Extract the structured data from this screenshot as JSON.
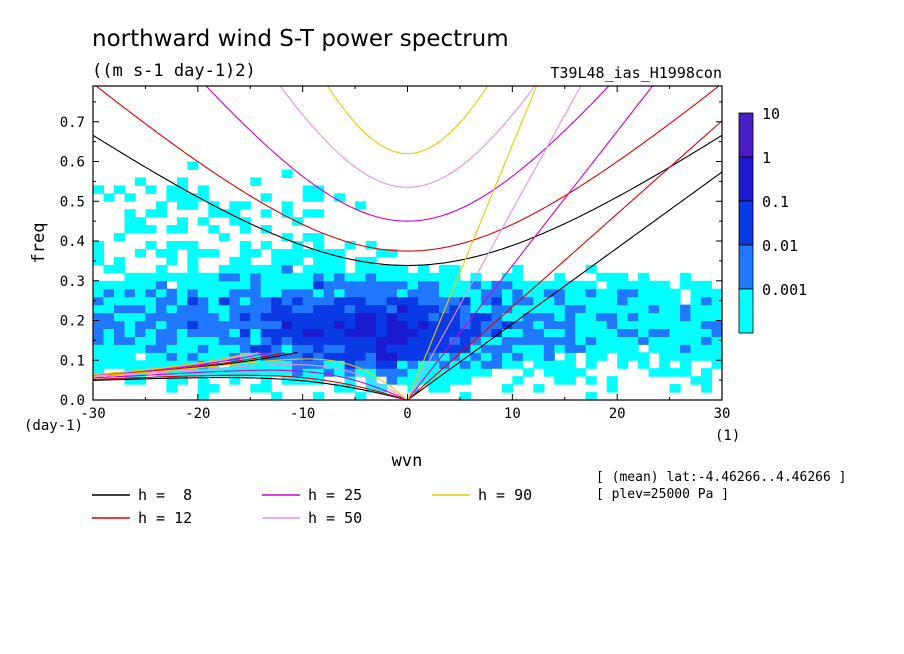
{
  "chart_data": {
    "type": "heatmap",
    "title": "northward wind S-T power spectrum",
    "subtitle": "((m s-1 day-1)2)",
    "run_label": "T39L48_ias_H1998con",
    "xlabel": "wvn",
    "ylabel": "freq",
    "x_unit": "(1)",
    "y_unit": "(day-1)",
    "xlim": [
      -30,
      30
    ],
    "ylim": [
      0,
      0.79
    ],
    "x_ticks": [
      "-30",
      "-20",
      "-10",
      "0",
      "10",
      "20",
      "30"
    ],
    "y_ticks": [
      "0.0",
      "0.1",
      "0.2",
      "0.3",
      "0.4",
      "0.5",
      "0.6",
      "0.7"
    ],
    "colorbar": {
      "labels": [
        "10",
        "1",
        "0.1",
        "0.01",
        "0.001"
      ],
      "colors": [
        "#4a1ec4",
        "#1a1ad0",
        "#0a3ae6",
        "#1f78ff",
        "#00ffff"
      ]
    },
    "power_regions": [
      {
        "level": "0.001",
        "color": "#00ffff",
        "x": [
          -30,
          30
        ],
        "y": [
          0.0,
          0.62
        ],
        "note_area": "broad"
      },
      {
        "level": "0.01",
        "color": "#1f78ff",
        "x": [
          -16,
          9
        ],
        "y": [
          0.0,
          0.3
        ]
      },
      {
        "level": "0.1",
        "color": "#0a3ae6",
        "x": [
          -8,
          2
        ],
        "y": [
          0.04,
          0.16
        ]
      }
    ],
    "dispersion_curves": [
      {
        "name": "h =  8",
        "color": "#000000"
      },
      {
        "name": "h = 12",
        "color": "#e00000"
      },
      {
        "name": "h = 25",
        "color": "#d000d0"
      },
      {
        "name": "h = 50",
        "color": "#e890e8"
      },
      {
        "name": "h = 90",
        "color": "#f0c800"
      }
    ],
    "info_lines": [
      "[ (mean) lat:-4.46266..4.46266 ]",
      "[ plev=25000 Pa ]"
    ]
  }
}
